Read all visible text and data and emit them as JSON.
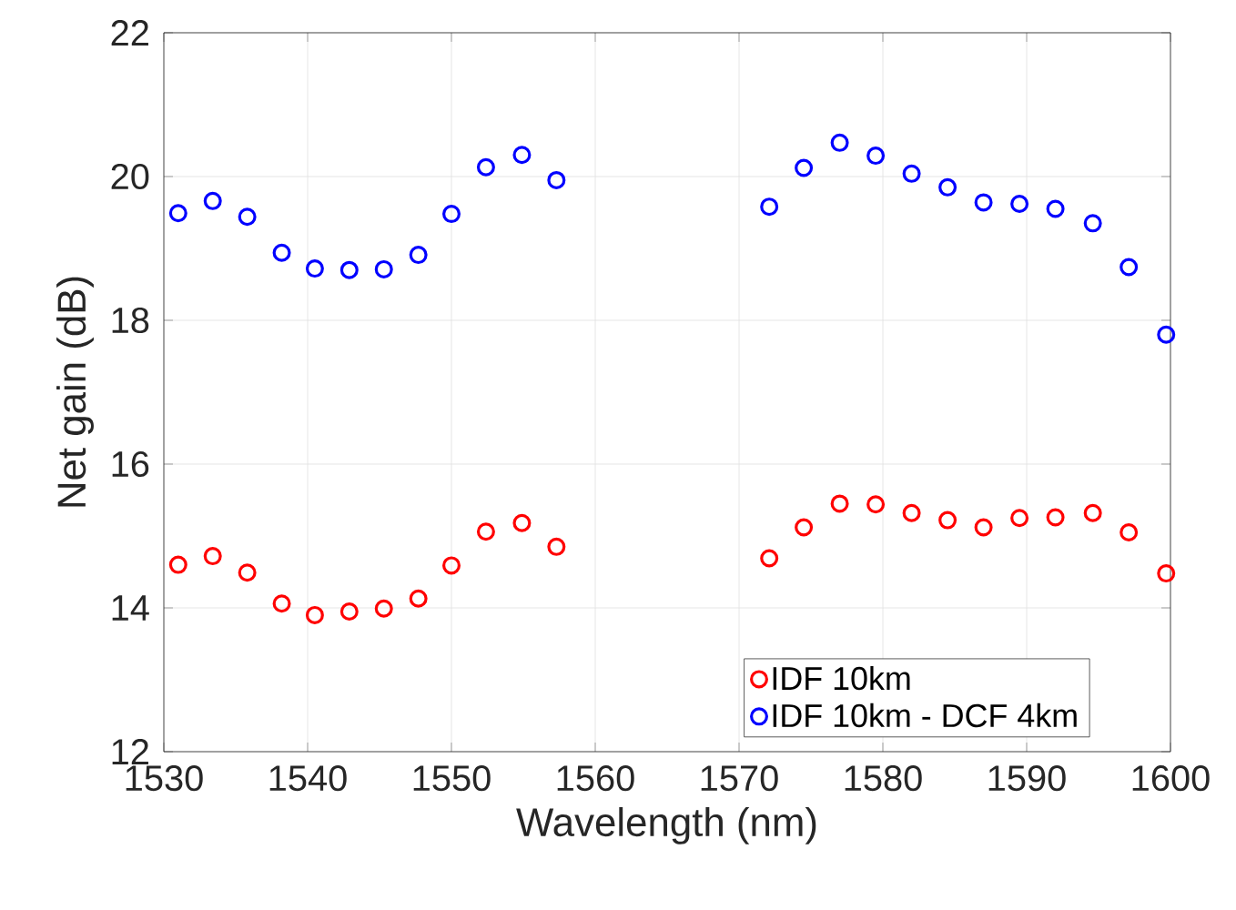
{
  "chart_data": {
    "type": "scatter",
    "xlabel": "Wavelength (nm)",
    "ylabel": "Net gain (dB)",
    "xlim": [
      1530,
      1600
    ],
    "xticks": [
      1530,
      1540,
      1550,
      1560,
      1570,
      1580,
      1590,
      1600
    ],
    "ylim": [
      12,
      22
    ],
    "yticks": [
      12,
      14,
      16,
      18,
      20,
      22
    ],
    "grid": true,
    "legend": "bottom right",
    "marker": "circle",
    "series": [
      {
        "name": "IDF 10km",
        "color": "#ff0000",
        "x": [
          1531.0,
          1533.4,
          1535.8,
          1538.2,
          1540.5,
          1542.9,
          1545.3,
          1547.7,
          1550.0,
          1552.4,
          1554.9,
          1557.3,
          1572.1,
          1574.5,
          1577.0,
          1579.5,
          1582.0,
          1584.5,
          1587.0,
          1589.5,
          1592.0,
          1594.6,
          1597.1,
          1599.7
        ],
        "values": [
          14.6,
          14.72,
          14.49,
          14.06,
          13.9,
          13.95,
          13.99,
          14.13,
          14.59,
          15.06,
          15.18,
          14.85,
          14.69,
          15.12,
          15.45,
          15.44,
          15.32,
          15.22,
          15.12,
          15.25,
          15.26,
          15.32,
          15.05,
          14.48
        ]
      },
      {
        "name": "IDF 10km - DCF 4km",
        "color": "#0000ff",
        "x": [
          1531.0,
          1533.4,
          1535.8,
          1538.2,
          1540.5,
          1542.9,
          1545.3,
          1547.7,
          1550.0,
          1552.4,
          1554.9,
          1557.3,
          1572.1,
          1574.5,
          1577.0,
          1579.5,
          1582.0,
          1584.5,
          1587.0,
          1589.5,
          1592.0,
          1594.6,
          1597.1,
          1599.7
        ],
        "values": [
          19.49,
          19.66,
          19.44,
          18.94,
          18.72,
          18.7,
          18.71,
          18.91,
          19.48,
          20.13,
          20.3,
          19.95,
          19.58,
          20.12,
          20.47,
          20.29,
          20.04,
          19.85,
          19.64,
          19.62,
          19.55,
          19.35,
          18.74,
          17.8
        ]
      }
    ]
  }
}
